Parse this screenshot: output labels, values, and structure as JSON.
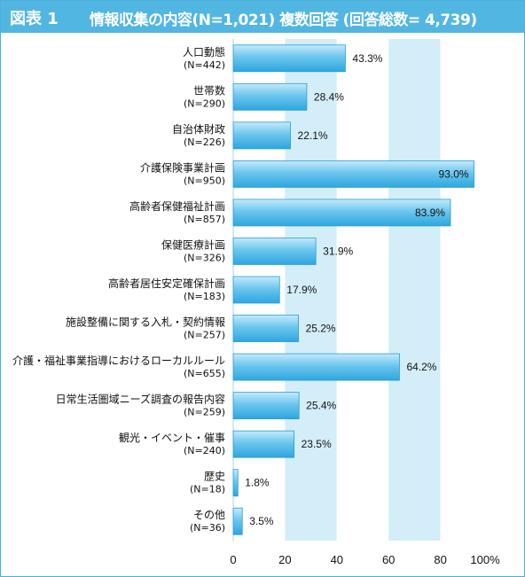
{
  "header": {
    "figure_label": "図表 1",
    "title": "情報収集の内容(N=1,021) 複数回答 (回答総数= 4,739)"
  },
  "colors": {
    "header_bg": "#52b6e2",
    "band": "#d3eef9",
    "bar_top": "#c4eafb",
    "bar_bottom": "#2ea6df"
  },
  "chart_data": {
    "type": "bar",
    "orientation": "horizontal",
    "title": "情報収集の内容(N=1,021) 複数回答 (回答総数= 4,739)",
    "xlim": [
      0,
      100
    ],
    "xticks": [
      "0",
      "20",
      "40",
      "60",
      "80",
      "100%"
    ],
    "grid": "alternating vertical bands",
    "categories": [
      {
        "label": "人口動態",
        "n": "(N=442)",
        "value": 43.3,
        "value_label": "43.3%"
      },
      {
        "label": "世帯数",
        "n": "(N=290)",
        "value": 28.4,
        "value_label": "28.4%"
      },
      {
        "label": "自治体財政",
        "n": "(N=226)",
        "value": 22.1,
        "value_label": "22.1%"
      },
      {
        "label": "介護保険事業計画",
        "n": "(N=950)",
        "value": 93.0,
        "value_label": "93.0%"
      },
      {
        "label": "高齢者保健福祉計画",
        "n": "(N=857)",
        "value": 83.9,
        "value_label": "83.9%"
      },
      {
        "label": "保健医療計画",
        "n": "(N=326)",
        "value": 31.9,
        "value_label": "31.9%"
      },
      {
        "label": "高齢者居住安定確保計画",
        "n": "(N=183)",
        "value": 17.9,
        "value_label": "17.9%"
      },
      {
        "label": "施設整備に関する入札・契約情報",
        "n": "(N=257)",
        "value": 25.2,
        "value_label": "25.2%"
      },
      {
        "label": "介護・福祉事業指導におけるローカルルール",
        "n": "(N=655)",
        "value": 64.2,
        "value_label": "64.2%"
      },
      {
        "label": "日常生活圏域ニーズ調査の報告内容",
        "n": "(N=259)",
        "value": 25.4,
        "value_label": "25.4%"
      },
      {
        "label": "観光・イベント・催事",
        "n": "(N=240)",
        "value": 23.5,
        "value_label": "23.5%"
      },
      {
        "label": "歴史",
        "n": "(N=18)",
        "value": 1.8,
        "value_label": "1.8%"
      },
      {
        "label": "その他",
        "n": "(N=36)",
        "value": 3.5,
        "value_label": "3.5%"
      }
    ]
  }
}
